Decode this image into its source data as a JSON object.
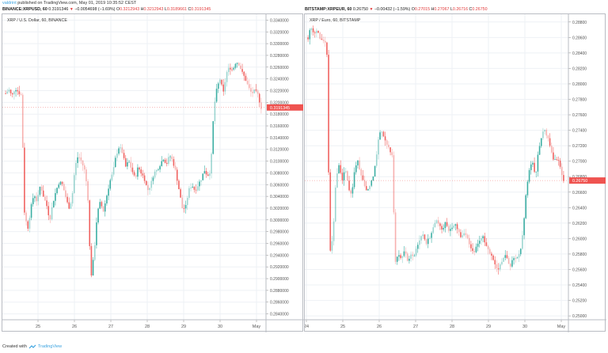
{
  "header": {
    "user": "valdrint",
    "published_text": "published on TradingView.com, May 01, 2019 10:35:52 CEST"
  },
  "footer": {
    "created_with": "Created with",
    "brand": "TradingView",
    "logo_icon": "tradingview-cloud-icon"
  },
  "colors": {
    "up": "#26a69a",
    "down": "#ef5350",
    "grid": "#eef1f5",
    "axis_text": "#555",
    "price_label_bg": "#ef5350"
  },
  "charts": [
    {
      "symbol_line": "BINANCE:XRPUSD, 60",
      "last": "0.3191346",
      "change": "−0.0054698 (−1.69%)",
      "O": "0.3212943",
      "H": "0.3212943",
      "L": "0.3189661",
      "C": "0.3191345",
      "legend": "XRP / U.S. Dollar, 60, BINANCE",
      "current_price_label": "0.3191345"
    },
    {
      "symbol_line": "BITSTAMP:XRPEUR, 60",
      "last": "0.26750",
      "change": "−0.00432 (−1.59%)",
      "O": "0.27015",
      "H": "0.27067",
      "L": "0.26716",
      "C": "0.26750",
      "legend": "XRP / Euro, 60, BITSTAMP",
      "current_price_label": "0.26750"
    }
  ],
  "chart_data": [
    {
      "type": "candlestick",
      "title": "XRP / U.S. Dollar, 60, BINANCE",
      "xlabel": "",
      "ylabel": "",
      "x_ticks": [
        "25",
        "26",
        "27",
        "28",
        "29",
        "30",
        "May"
      ],
      "y_ticks": [
        "0.3340000",
        "0.3320000",
        "0.3300000",
        "0.3280000",
        "0.3260000",
        "0.3240000",
        "0.3220000",
        "0.3200000",
        "0.3180000",
        "0.3160000",
        "0.3140000",
        "0.3120000",
        "0.3100000",
        "0.3080000",
        "0.3060000",
        "0.3040000",
        "0.3020000",
        "0.3000000",
        "0.2980000",
        "0.2960000",
        "0.2940000",
        "0.2920000",
        "0.2900000",
        "0.2880000",
        "0.2860000",
        "0.2840000"
      ],
      "ylim": [
        0.283,
        0.335
      ],
      "grid": true,
      "close_path": [
        0.3215,
        0.3222,
        0.321,
        0.3225,
        0.3218,
        0.3212,
        0.301,
        0.2985,
        0.302,
        0.3045,
        0.303,
        0.306,
        0.304,
        0.3025,
        0.3,
        0.303,
        0.305,
        0.3065,
        0.306,
        0.304,
        0.302,
        0.3035,
        0.309,
        0.311,
        0.31,
        0.3085,
        0.305,
        0.29,
        0.294,
        0.301,
        0.303,
        0.3015,
        0.304,
        0.3065,
        0.308,
        0.311,
        0.3125,
        0.3115,
        0.309,
        0.31,
        0.3085,
        0.307,
        0.309,
        0.308,
        0.307,
        0.305,
        0.306,
        0.308,
        0.3085,
        0.3095,
        0.3105,
        0.3095,
        0.311,
        0.31,
        0.308,
        0.305,
        0.302,
        0.302,
        0.305,
        0.306,
        0.305,
        0.306,
        0.307,
        0.3085,
        0.3075,
        0.3085,
        0.319,
        0.3225,
        0.324,
        0.3215,
        0.325,
        0.326,
        0.3255,
        0.327,
        0.3265,
        0.325,
        0.324,
        0.3225,
        0.3215,
        0.322,
        0.3212,
        0.3191
      ],
      "last_price": 0.3191345
    },
    {
      "type": "candlestick",
      "title": "XRP / Euro, 60, BITSTAMP",
      "xlabel": "",
      "ylabel": "",
      "x_ticks": [
        "24",
        "25",
        "26",
        "27",
        "28",
        "29",
        "30",
        "May"
      ],
      "y_ticks": [
        "0.28800",
        "0.28600",
        "0.28400",
        "0.28200",
        "0.28000",
        "0.27800",
        "0.27600",
        "0.27400",
        "0.27200",
        "0.27000",
        "0.26800",
        "0.26600",
        "0.26400",
        "0.26200",
        "0.26000",
        "0.25800",
        "0.25600",
        "0.25400",
        "0.25200",
        "0.25000"
      ],
      "ylim": [
        0.2495,
        0.289
      ],
      "grid": true,
      "close_path": [
        0.286,
        0.2875,
        0.2865,
        0.287,
        0.2858,
        0.2855,
        0.285,
        0.258,
        0.2605,
        0.268,
        0.2695,
        0.2675,
        0.269,
        0.2665,
        0.2655,
        0.269,
        0.27,
        0.268,
        0.267,
        0.266,
        0.2672,
        0.268,
        0.271,
        0.274,
        0.2735,
        0.2725,
        0.2718,
        0.2705,
        0.257,
        0.2578,
        0.2575,
        0.2585,
        0.257,
        0.258,
        0.2575,
        0.259,
        0.26,
        0.2605,
        0.2595,
        0.26,
        0.2615,
        0.2625,
        0.2618,
        0.2612,
        0.262,
        0.261,
        0.2615,
        0.262,
        0.2612,
        0.26,
        0.2608,
        0.2605,
        0.259,
        0.258,
        0.259,
        0.2595,
        0.2602,
        0.2595,
        0.2585,
        0.2575,
        0.2568,
        0.256,
        0.257,
        0.2578,
        0.2572,
        0.2565,
        0.2575,
        0.2572,
        0.258,
        0.261,
        0.266,
        0.269,
        0.27,
        0.268,
        0.2715,
        0.2735,
        0.274,
        0.273,
        0.2715,
        0.27,
        0.2705,
        0.269,
        0.2675
      ],
      "last_price": 0.2675
    }
  ]
}
